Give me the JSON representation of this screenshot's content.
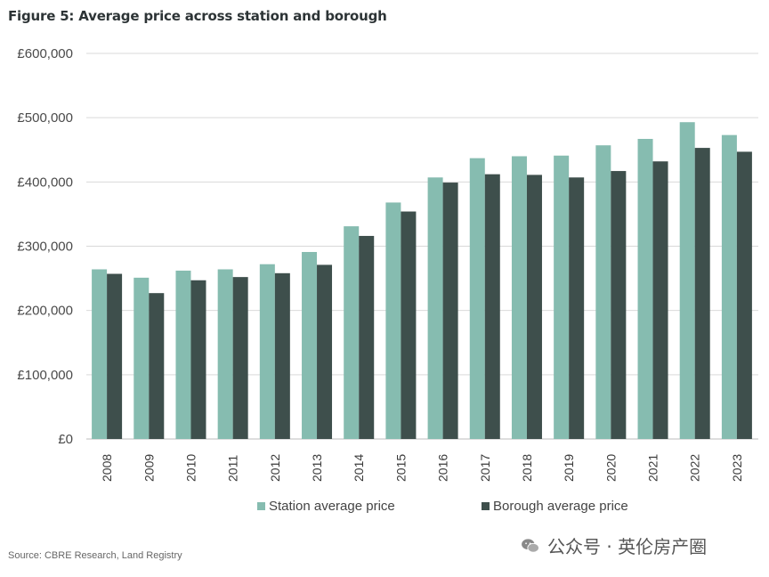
{
  "figure_title": "Figure 5: Average price across station and borough",
  "source": "Source: CBRE Research, Land Registry",
  "watermark": "公众号 · 英伦房产圈",
  "colors": {
    "station": "#86bcb0",
    "borough": "#3e4f4c",
    "grid": "#d9d9d9"
  },
  "chart_data": {
    "type": "bar",
    "categories": [
      "2008",
      "2009",
      "2010",
      "2011",
      "2012",
      "2013",
      "2014",
      "2015",
      "2016",
      "2017",
      "2018",
      "2019",
      "2020",
      "2021",
      "2022",
      "2023"
    ],
    "series": [
      {
        "name": "Station average price",
        "values": [
          264000,
          251000,
          262000,
          264000,
          272000,
          291000,
          331000,
          368000,
          407000,
          437000,
          440000,
          441000,
          457000,
          467000,
          493000,
          473000
        ]
      },
      {
        "name": "Borough average price",
        "values": [
          257000,
          227000,
          247000,
          252000,
          258000,
          271000,
          316000,
          354000,
          399000,
          412000,
          411000,
          407000,
          417000,
          432000,
          453000,
          447000
        ]
      }
    ],
    "y_ticks": [
      "£0",
      "£100,000",
      "£200,000",
      "£300,000",
      "£400,000",
      "£500,000",
      "£600,000"
    ],
    "ylim": [
      0,
      600000
    ],
    "grid": true,
    "legend_position": "bottom"
  }
}
